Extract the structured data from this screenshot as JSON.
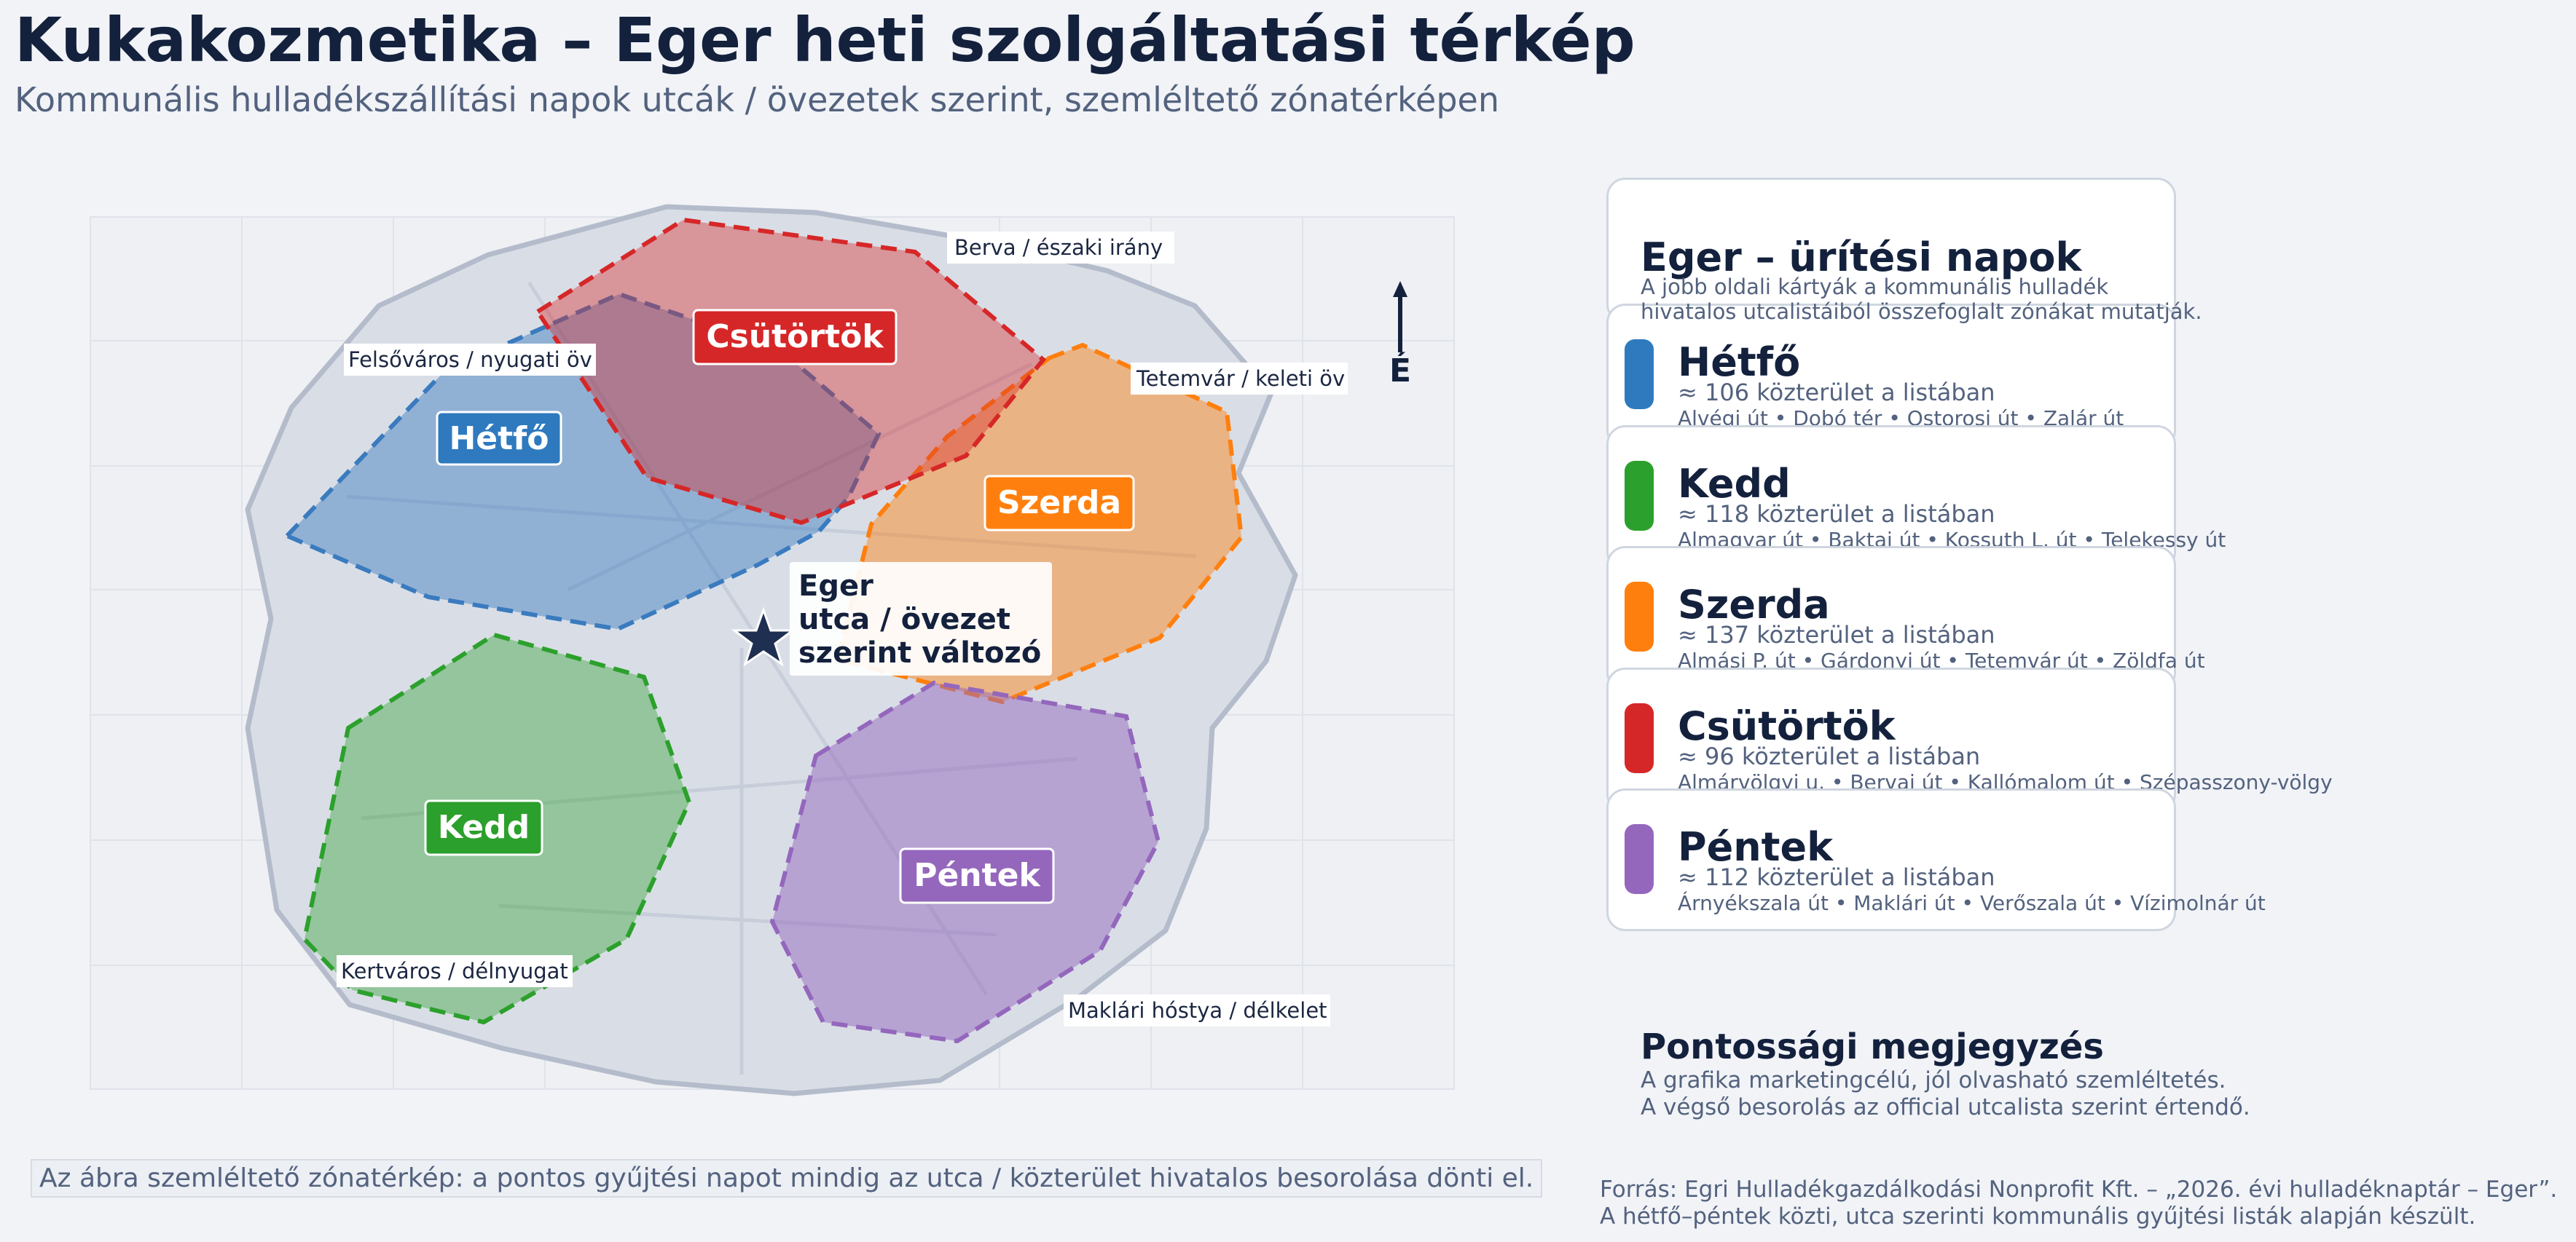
{
  "title": "Kukakozmetika – Eger heti szolgáltatási térkép",
  "subtitle": "Kommunális hulladékszállítási napok utcák / övezetek szerint, szemléltető zónatérképen",
  "map": {
    "center_label": [
      "Eger",
      "utca / övezet",
      "szerint változó"
    ],
    "north_label": "É",
    "places": {
      "north": "Berva / északi irány",
      "west": "Felsőváros / nyugati öv",
      "east": "Tetemvár / keleti öv",
      "southwest": "Kertváros / délnyugat",
      "southeast": "Maklári hóstya / délkelet"
    },
    "zones": [
      {
        "day": "Hétfő",
        "color": "#3a7bbf"
      },
      {
        "day": "Kedd",
        "color": "#2ca02c"
      },
      {
        "day": "Szerda",
        "color": "#ff7f0e"
      },
      {
        "day": "Csütörtök",
        "color": "#d62728"
      },
      {
        "day": "Péntek",
        "color": "#9467bd"
      }
    ]
  },
  "legend": {
    "title": "Eger – ürítési napok",
    "description": [
      "A jobb oldali kártyák a kommunális hulladék",
      "hivatalos utcalistáiból összefoglalt zónákat mutatják."
    ],
    "days": [
      {
        "name": "Hétfő",
        "color": "#2f7abf",
        "count": "≈ 106 közterület a listában",
        "streets": "Alvégi út • Dobó tér • Ostorosi út • Zalár út"
      },
      {
        "name": "Kedd",
        "color": "#2ca02c",
        "count": "≈ 118 közterület a listában",
        "streets": "Almagyar út • Baktai út • Kossuth L. út • Telekessy út"
      },
      {
        "name": "Szerda",
        "color": "#ff7f0e",
        "count": "≈ 137 közterület a listában",
        "streets": "Almási P. út • Gárdonyi út • Tetemvár út • Zöldfa út"
      },
      {
        "name": "Csütörtök",
        "color": "#d62728",
        "count": "≈ 96 közterület a listában",
        "streets": "Almárvölgyi u. • Bervai út • Kallómalom út • Szépasszony-völgy"
      },
      {
        "name": "Péntek",
        "color": "#9467bd",
        "count": "≈ 112 közterület a listában",
        "streets": "Árnyékszala út • Maklári út • Verőszala út • Vízimolnár út"
      }
    ]
  },
  "note": {
    "title": "Pontossági megjegyzés",
    "lines": [
      "A grafika marketingcélú, jól olvasható szemléltetés.",
      "A végső besorolás az official utcalista szerint értendő."
    ]
  },
  "footer": {
    "disclaimer": "Az ábra szemléltető zónatérkép: a pontos gyűjtési napot mindig az utca / közterület hivatalos besorolása dönti el.",
    "source": [
      "Forrás: Egri Hulladékgazdálkodási Nonprofit Kft. – „2026. évi hulladéknaptár – Eger”.",
      "A hétfő–péntek közti, utca szerinti kommunális gyűjtési listák alapján készült."
    ]
  }
}
